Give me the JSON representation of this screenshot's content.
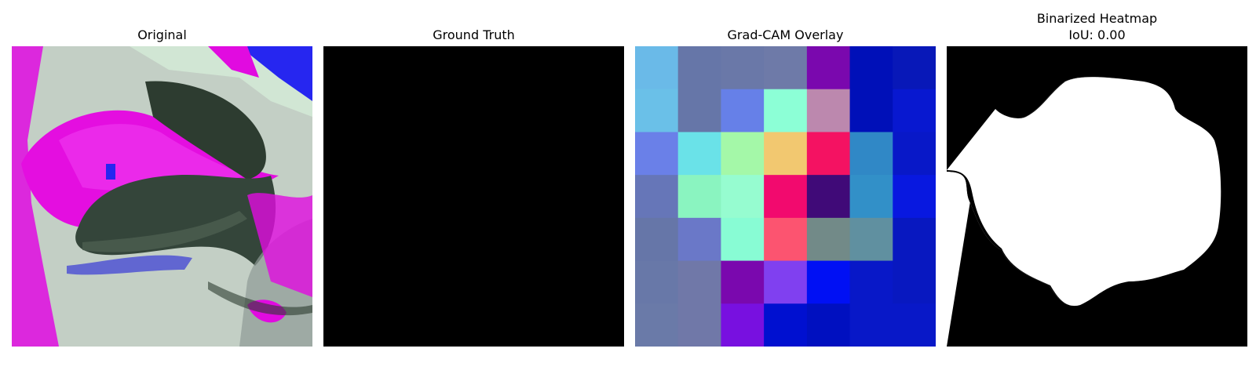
{
  "figure": {
    "panels": [
      {
        "title": "Original"
      },
      {
        "title": "Ground Truth"
      },
      {
        "title": "Grad-CAM Overlay"
      },
      {
        "title": "Binarized Heatmap",
        "subtitle": "IoU: 0.00"
      }
    ]
  },
  "gradcam_grid": {
    "rows": 7,
    "cols": 7,
    "colors": [
      [
        "#6abae8",
        "#6676a8",
        "#6a78a8",
        "#6e7aa8",
        "#7a08ae",
        "#0010b8",
        "#0818b8"
      ],
      [
        "#6ac0e8",
        "#6676a8",
        "#6680e8",
        "#8cffd6",
        "#bc88ae",
        "#0010b8",
        "#0818d0"
      ],
      [
        "#6a80e8",
        "#6ae2e8",
        "#a4f8a8",
        "#f2c870",
        "#f41262",
        "#3088c6",
        "#0818c8"
      ],
      [
        "#6676b8",
        "#8af4c0",
        "#96fcd0",
        "#f20a6e",
        "#400a78",
        "#3290c8",
        "#0818e0"
      ],
      [
        "#6676a8",
        "#6a78c8",
        "#88fcd4",
        "#fc5470",
        "#728a88",
        "#6090a0",
        "#0818c0"
      ],
      [
        "#6878a8",
        "#7078a8",
        "#7a08ae",
        "#8040f0",
        "#0010f4",
        "#0818c8",
        "#0818c0"
      ],
      [
        "#6a7aa8",
        "#7078a8",
        "#7810e0",
        "#0010d0",
        "#0010c0",
        "#0818c8",
        "#0818c8"
      ]
    ]
  }
}
